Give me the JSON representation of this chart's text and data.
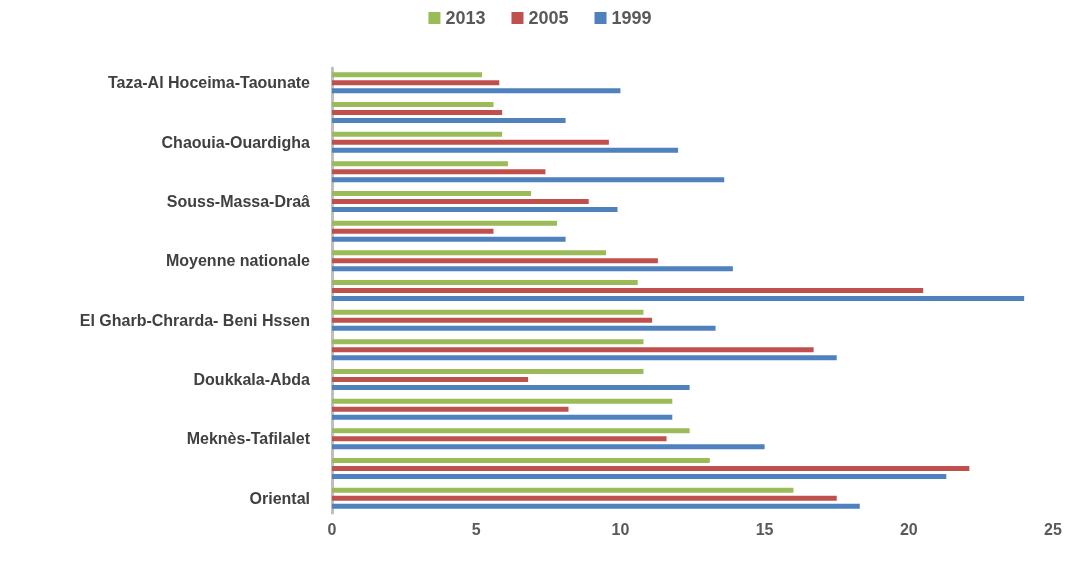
{
  "chart_data": {
    "type": "bar",
    "orientation": "horizontal",
    "categories": [
      "Taza-Al Hoceima-Taounate",
      null,
      "Chaouia-Ouardigha",
      null,
      "Souss-Massa-Draâ",
      null,
      "Moyenne nationale",
      null,
      "El Gharb-Chrarda- Beni Hssen",
      null,
      "Doukkala-Abda",
      null,
      "Meknès-Tafilalet",
      null,
      "Oriental"
    ],
    "series": [
      {
        "name": "2013",
        "color": "#9bbb59",
        "values": [
          5.2,
          5.6,
          5.9,
          6.1,
          6.9,
          7.8,
          9.5,
          10.6,
          10.8,
          10.8,
          10.8,
          11.8,
          12.4,
          13.1,
          16.0
        ]
      },
      {
        "name": "2005",
        "color": "#c0504d",
        "values": [
          5.8,
          5.9,
          9.6,
          7.4,
          8.9,
          5.6,
          11.3,
          20.5,
          11.1,
          16.7,
          6.8,
          8.2,
          11.6,
          22.1,
          17.5
        ]
      },
      {
        "name": "1999",
        "color": "#4f81bd",
        "values": [
          10.0,
          8.1,
          12.0,
          13.6,
          9.9,
          8.1,
          13.9,
          24.0,
          13.3,
          17.5,
          12.4,
          11.8,
          15.0,
          21.3,
          18.3
        ]
      }
    ],
    "xlim": [
      0,
      25
    ],
    "xticks": [
      0,
      5,
      10,
      15,
      20,
      25
    ],
    "grid": false,
    "legend": "top"
  }
}
